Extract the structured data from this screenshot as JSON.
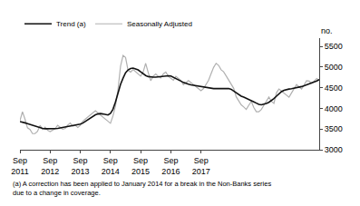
{
  "chart_data": {
    "type": "line",
    "ylabel": "no.",
    "footnote": "(a) A correction has been applied to January 2014 for a break in the Non-Banks series\ndue to a change in coverage.",
    "ylim": [
      3000,
      5700
    ],
    "yticks": [
      3000,
      3500,
      4000,
      4500,
      5000,
      5500
    ],
    "grid": false,
    "legend": "upper left",
    "categories": [
      "Sep\n2011",
      null,
      null,
      null,
      null,
      null,
      null,
      null,
      null,
      null,
      null,
      null,
      "Sep\n2012",
      null,
      null,
      null,
      null,
      null,
      null,
      null,
      null,
      null,
      null,
      null,
      "Sep\n2013",
      null,
      null,
      null,
      null,
      null,
      null,
      null,
      null,
      null,
      null,
      null,
      "Sep\n2014",
      null,
      null,
      null,
      null,
      null,
      null,
      null,
      null,
      null,
      null,
      null,
      "Sep\n2015",
      null,
      null,
      null,
      null,
      null,
      null,
      null,
      null,
      null,
      null,
      null,
      "Sep\n2016",
      null,
      null,
      null,
      null,
      null,
      null,
      null,
      null,
      null,
      null,
      null,
      "Sep\n2017",
      null,
      null,
      null,
      null,
      null,
      null,
      null,
      null,
      null,
      null,
      null,
      null,
      null,
      null,
      null,
      null,
      null,
      null,
      null,
      null,
      null,
      null,
      null,
      null,
      null,
      null,
      null,
      null,
      null,
      null,
      null,
      null,
      null,
      null,
      null,
      null,
      null,
      null,
      null,
      null,
      null,
      null,
      null,
      null,
      null,
      null,
      null
    ],
    "series": [
      {
        "name": "Trend (a)",
        "color": "#111111",
        "values": [
          3680,
          3670,
          3650,
          3630,
          3610,
          3585,
          3560,
          3540,
          3525,
          3515,
          3508,
          3505,
          3505,
          3505,
          3510,
          3515,
          3525,
          3535,
          3548,
          3558,
          3568,
          3578,
          3590,
          3602,
          3618,
          3645,
          3685,
          3735,
          3775,
          3815,
          3845,
          3865,
          3875,
          3865,
          3855,
          3840,
          3880,
          3980,
          4160,
          4380,
          4580,
          4730,
          4860,
          4930,
          4965,
          4975,
          4960,
          4930,
          4885,
          4835,
          4795,
          4770,
          4758,
          4755,
          4755,
          4765,
          4775,
          4785,
          4790,
          4790,
          4782,
          4755,
          4722,
          4690,
          4660,
          4628,
          4600,
          4585,
          4568,
          4558,
          4548,
          4538,
          4525,
          4508,
          4495,
          4485,
          4482,
          4480,
          4480,
          4480,
          4482,
          4485,
          4488,
          4480,
          4462,
          4422,
          4372,
          4328,
          4295,
          4272,
          4248,
          4218,
          4188,
          4158,
          4128,
          4098,
          4088,
          4098,
          4118,
          4148,
          4188,
          4238,
          4295,
          4352,
          4405,
          4438,
          4458,
          4468,
          4478,
          4488,
          4498,
          4510,
          4528,
          4548,
          4568,
          4590,
          4612,
          4638,
          4665,
          4695
        ]
      },
      {
        "name": "Seasonally Adjusted",
        "color": "#b0b0b0",
        "values": [
          3700,
          3920,
          3740,
          3530,
          3490,
          3390,
          3390,
          3445,
          3590,
          3490,
          3545,
          3470,
          3440,
          3470,
          3510,
          3590,
          3545,
          3495,
          3515,
          3595,
          3645,
          3570,
          3595,
          3540,
          3590,
          3690,
          3740,
          3795,
          3845,
          3895,
          3945,
          3890,
          3840,
          3810,
          3740,
          3690,
          3640,
          3820,
          4060,
          4460,
          5020,
          5280,
          5230,
          4920,
          4880,
          4940,
          4880,
          4830,
          4780,
          4880,
          5090,
          4870,
          4670,
          4780,
          4830,
          4775,
          4735,
          4835,
          4880,
          4775,
          4730,
          4680,
          4775,
          4730,
          4675,
          4575,
          4625,
          4675,
          4625,
          4575,
          4525,
          4475,
          4430,
          4480,
          4580,
          4680,
          4840,
          4990,
          5090,
          5040,
          4935,
          4885,
          4785,
          4685,
          4585,
          4485,
          4280,
          4175,
          4085,
          4035,
          3975,
          4075,
          4170,
          4020,
          3920,
          3920,
          3975,
          4075,
          4175,
          4275,
          4170,
          4120,
          4375,
          4470,
          4420,
          4370,
          4320,
          4270,
          4375,
          4475,
          4575,
          4520,
          4470,
          4570,
          4670,
          4660,
          4610,
          4660,
          4720,
          4680
        ]
      }
    ]
  }
}
